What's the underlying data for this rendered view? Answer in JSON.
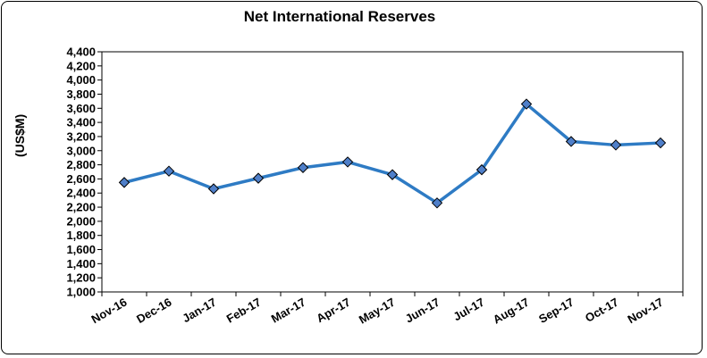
{
  "chart_data": {
    "type": "line",
    "title": "Net International Reserves",
    "xlabel": "",
    "ylabel": "(US$M)",
    "categories": [
      "Nov-16",
      "Dec-16",
      "Jan-17",
      "Feb-17",
      "Mar-17",
      "Apr-17",
      "May-17",
      "Jun-17",
      "Jul-17",
      "Aug-17",
      "Sep-17",
      "Oct-17",
      "Nov-17"
    ],
    "series": [
      {
        "values": [
          2550,
          2710,
          2460,
          2610,
          2760,
          2840,
          2660,
          2260,
          2730,
          3660,
          3130,
          3080,
          3110
        ],
        "color": "#2E7BC4",
        "marker_fill": "#4F7FC9",
        "marker": "diamond"
      }
    ],
    "ylim": [
      1000,
      4400
    ],
    "yticks": [
      "1,000",
      "1,200",
      "1,400",
      "1,600",
      "1,800",
      "2,000",
      "2,200",
      "2,400",
      "2,600",
      "2,800",
      "3,000",
      "3,200",
      "3,400",
      "3,600",
      "3,800",
      "4,000",
      "4,200",
      "4,400"
    ],
    "grid": false,
    "legend": "none"
  }
}
